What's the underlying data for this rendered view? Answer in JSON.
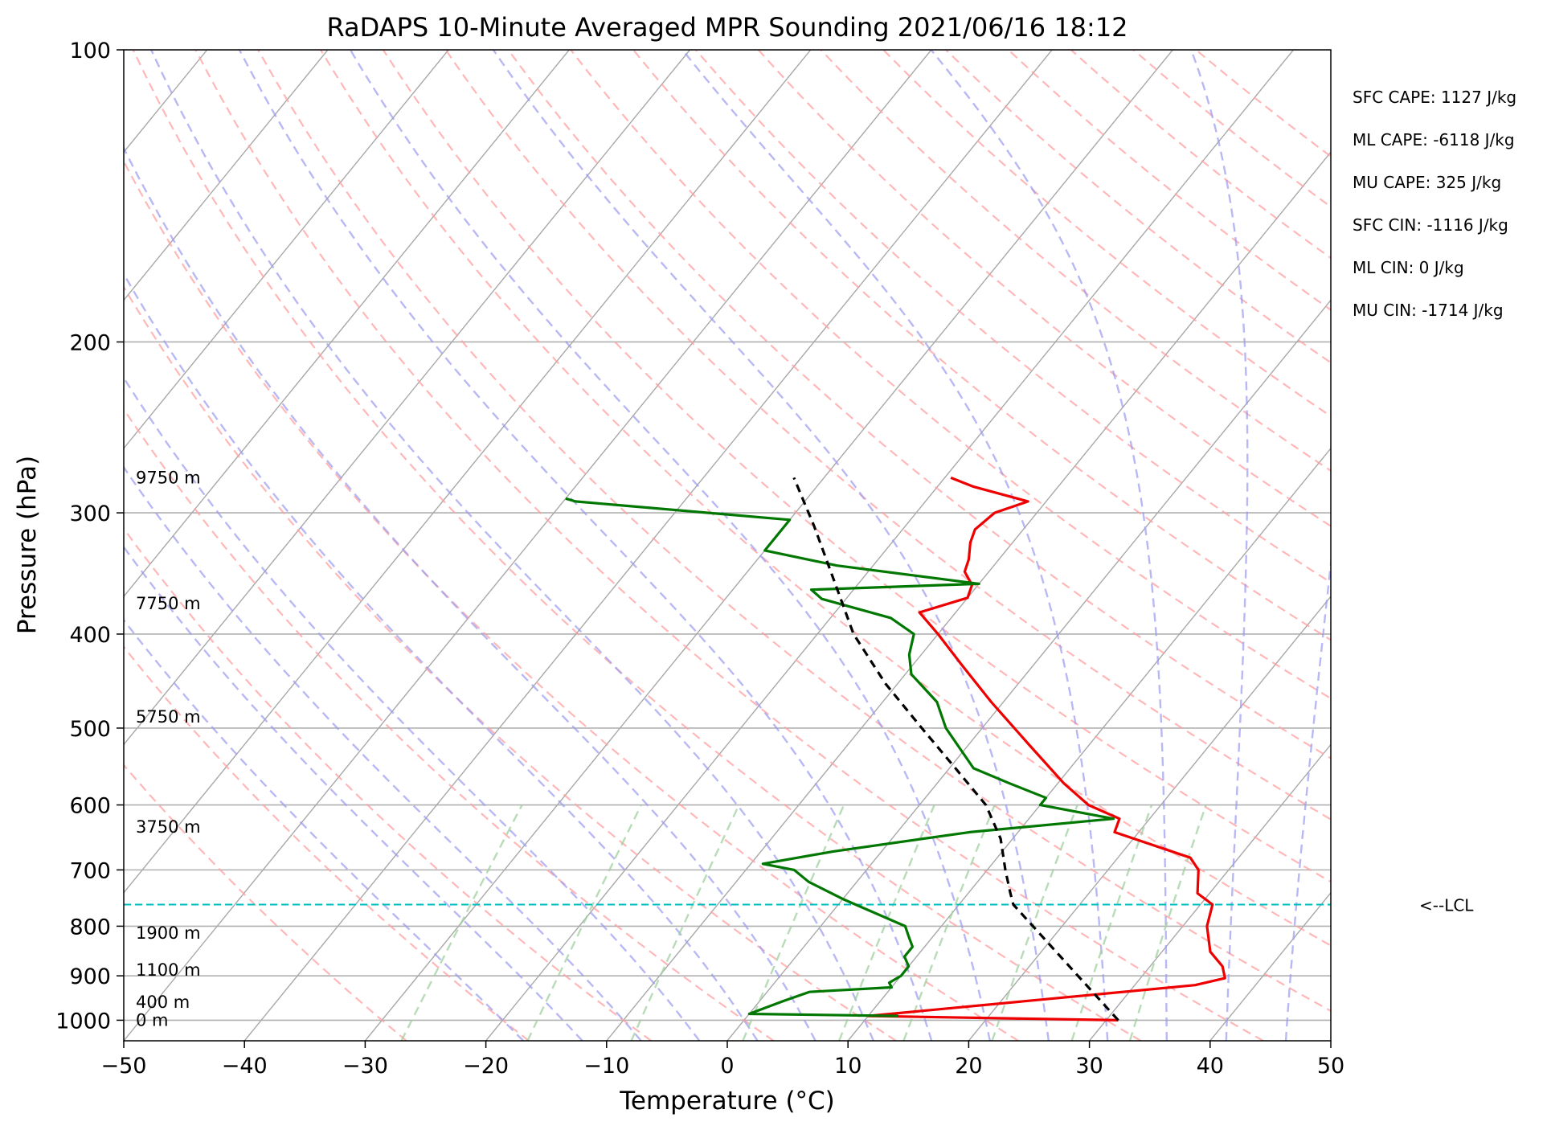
{
  "chart_data": {
    "type": "line",
    "subtype": "skew-t log-p sounding",
    "title": "RaDAPS 10-Minute Averaged MPR Sounding 2021/06/16 18:12",
    "xlabel": "Temperature (°C)",
    "ylabel": "Pressure (hPa)",
    "xlim": [
      -50,
      50
    ],
    "ylim": [
      1050,
      100
    ],
    "y_scale": "log",
    "grid": true,
    "x_ticks": [
      "−50",
      "−40",
      "−30",
      "−20",
      "−10",
      "0",
      "10",
      "20",
      "30",
      "40",
      "50"
    ],
    "y_ticks": [
      "100",
      "200",
      "300",
      "400",
      "500",
      "600",
      "700",
      "800",
      "900",
      "1000"
    ],
    "series": [
      {
        "role": "temperature",
        "color": "#ee0000",
        "points": [
          [
            1000,
            31.0
          ],
          [
            990,
            10.0
          ],
          [
            920,
            35.0
          ],
          [
            905,
            37.0
          ],
          [
            880,
            36.0
          ],
          [
            850,
            34.0
          ],
          [
            800,
            32.0
          ],
          [
            760,
            31.0
          ],
          [
            740,
            29.0
          ],
          [
            700,
            27.5
          ],
          [
            680,
            26.0
          ],
          [
            640,
            18.0
          ],
          [
            620,
            17.5
          ],
          [
            600,
            14.0
          ],
          [
            570,
            10.5
          ],
          [
            520,
            5.0
          ],
          [
            470,
            -1.0
          ],
          [
            430,
            -6.0
          ],
          [
            400,
            -10.0
          ],
          [
            380,
            -13.0
          ],
          [
            367,
            -10.0
          ],
          [
            356,
            -10.5
          ],
          [
            345,
            -12.0
          ],
          [
            335,
            -12.5
          ],
          [
            322,
            -13.5
          ],
          [
            312,
            -14.0
          ],
          [
            300,
            -13.5
          ],
          [
            292,
            -11.5
          ],
          [
            282,
            -17.0
          ],
          [
            276,
            -19.5
          ]
        ]
      },
      {
        "role": "dewpoint",
        "color": "#007700",
        "points": [
          [
            990,
            12.5
          ],
          [
            985,
            0.0
          ],
          [
            970,
            1.0
          ],
          [
            955,
            2.0
          ],
          [
            935,
            3.5
          ],
          [
            925,
            10.0
          ],
          [
            915,
            9.5
          ],
          [
            900,
            10.0
          ],
          [
            880,
            10.0
          ],
          [
            860,
            9.0
          ],
          [
            840,
            9.0
          ],
          [
            820,
            8.0
          ],
          [
            800,
            7.0
          ],
          [
            750,
            0.0
          ],
          [
            720,
            -4.0
          ],
          [
            700,
            -6.0
          ],
          [
            690,
            -9.0
          ],
          [
            670,
            -4.0
          ],
          [
            640,
            6.0
          ],
          [
            620,
            17.0
          ],
          [
            600,
            10.0
          ],
          [
            590,
            10.0
          ],
          [
            570,
            6.0
          ],
          [
            550,
            2.0
          ],
          [
            500,
            -3.0
          ],
          [
            470,
            -5.5
          ],
          [
            440,
            -9.5
          ],
          [
            420,
            -11.0
          ],
          [
            400,
            -12.0
          ],
          [
            385,
            -15.0
          ],
          [
            368,
            -22.0
          ],
          [
            360,
            -23.5
          ],
          [
            355,
            -10.0
          ],
          [
            340,
            -23.0
          ],
          [
            328,
            -30.0
          ],
          [
            315,
            -30.0
          ],
          [
            305,
            -30.0
          ],
          [
            292,
            -49.0
          ],
          [
            290,
            -50.0
          ]
        ]
      },
      {
        "role": "parcel",
        "color": "#000000",
        "dash": true,
        "points": [
          [
            1000,
            31.0
          ],
          [
            760,
            14.5
          ],
          [
            740,
            13.5
          ],
          [
            700,
            11.5
          ],
          [
            650,
            9.0
          ],
          [
            600,
            5.5
          ],
          [
            550,
            0.5
          ],
          [
            500,
            -5.0
          ],
          [
            450,
            -11.0
          ],
          [
            400,
            -17.0
          ],
          [
            350,
            -22.5
          ],
          [
            310,
            -27.5
          ],
          [
            276,
            -32.5
          ]
        ]
      }
    ],
    "lcl": {
      "pressure": 760,
      "label": "<--LCL",
      "color": "#00bbbb"
    },
    "height_labels": [
      {
        "text": "9750 m",
        "pressure": 276
      },
      {
        "text": "7750 m",
        "pressure": 372
      },
      {
        "text": "5750 m",
        "pressure": 487
      },
      {
        "text": "3750 m",
        "pressure": 632
      },
      {
        "text": "1900 m",
        "pressure": 813
      },
      {
        "text": "1100 m",
        "pressure": 888
      },
      {
        "text": "400 m",
        "pressure": 958
      },
      {
        "text": "0 m",
        "pressure": 1000
      }
    ],
    "stats": [
      "SFC CAPE: 1127 J/kg",
      "ML CAPE: -6118 J/kg",
      "MU CAPE: 325 J/kg",
      "SFC CIN: -1116 J/kg",
      "ML CIN: 0 J/kg",
      "MU CIN: -1714 J/kg"
    ],
    "background_lines": {
      "isotherms": {
        "color": "#999999",
        "from": -120,
        "to": 60,
        "step": 10
      },
      "dry_adiabats": {
        "color": "#ff9999",
        "dash": true
      },
      "moist_adiabats": {
        "color": "#8888ee",
        "dash": true
      },
      "mixing_ratio_lines": {
        "color": "#88cc88",
        "dash": true,
        "top_pressure": 600
      }
    }
  }
}
